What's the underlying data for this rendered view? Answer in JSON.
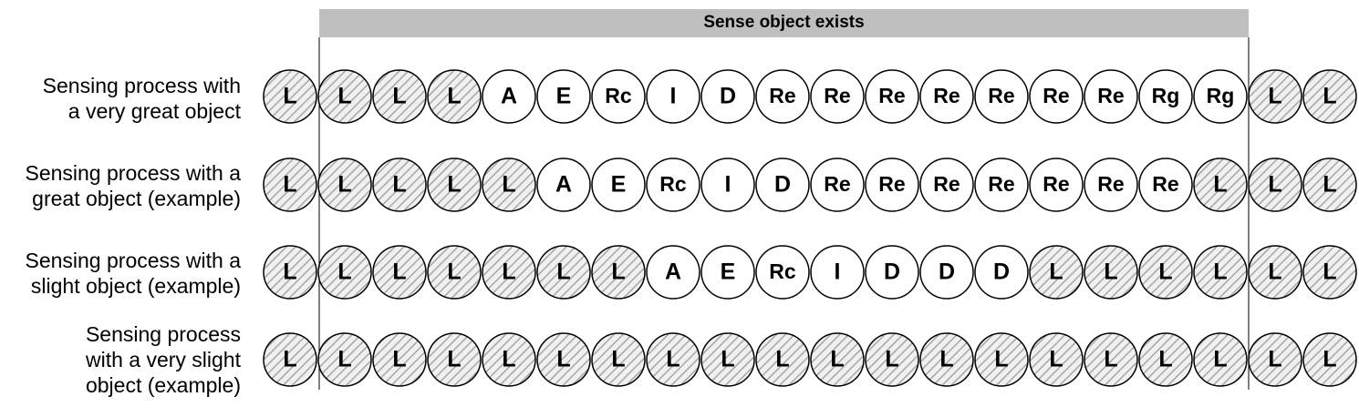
{
  "header": {
    "label": "Sense object exists"
  },
  "rows": [
    {
      "label": "Sensing process with\na very great object",
      "cells": [
        "L",
        "L",
        "L",
        "L",
        "A",
        "E",
        "Rc",
        "I",
        "D",
        "Re",
        "Re",
        "Re",
        "Re",
        "Re",
        "Re",
        "Re",
        "Rg",
        "Rg",
        "L",
        "L"
      ]
    },
    {
      "label": "Sensing process with a\ngreat object (example)",
      "cells": [
        "L",
        "L",
        "L",
        "L",
        "L",
        "A",
        "E",
        "Rc",
        "I",
        "D",
        "Re",
        "Re",
        "Re",
        "Re",
        "Re",
        "Re",
        "Re",
        "L",
        "L",
        "L"
      ]
    },
    {
      "label": "Sensing process with a\nslight object (example)",
      "cells": [
        "L",
        "L",
        "L",
        "L",
        "L",
        "L",
        "L",
        "A",
        "E",
        "Rc",
        "I",
        "D",
        "D",
        "D",
        "L",
        "L",
        "L",
        "L",
        "L",
        "L"
      ]
    },
    {
      "label": "Sensing process\nwith a very slight\nobject (example)",
      "cells": [
        "L",
        "L",
        "L",
        "L",
        "L",
        "L",
        "L",
        "L",
        "L",
        "L",
        "L",
        "L",
        "L",
        "L",
        "L",
        "L",
        "L",
        "L",
        "L",
        "L"
      ]
    }
  ],
  "hatched_value": "L",
  "colors": {
    "header_fill": "#bfbfbf",
    "hatch": "#a6a6a6",
    "circle_fill": "#ffffff",
    "stroke": "#000000"
  }
}
